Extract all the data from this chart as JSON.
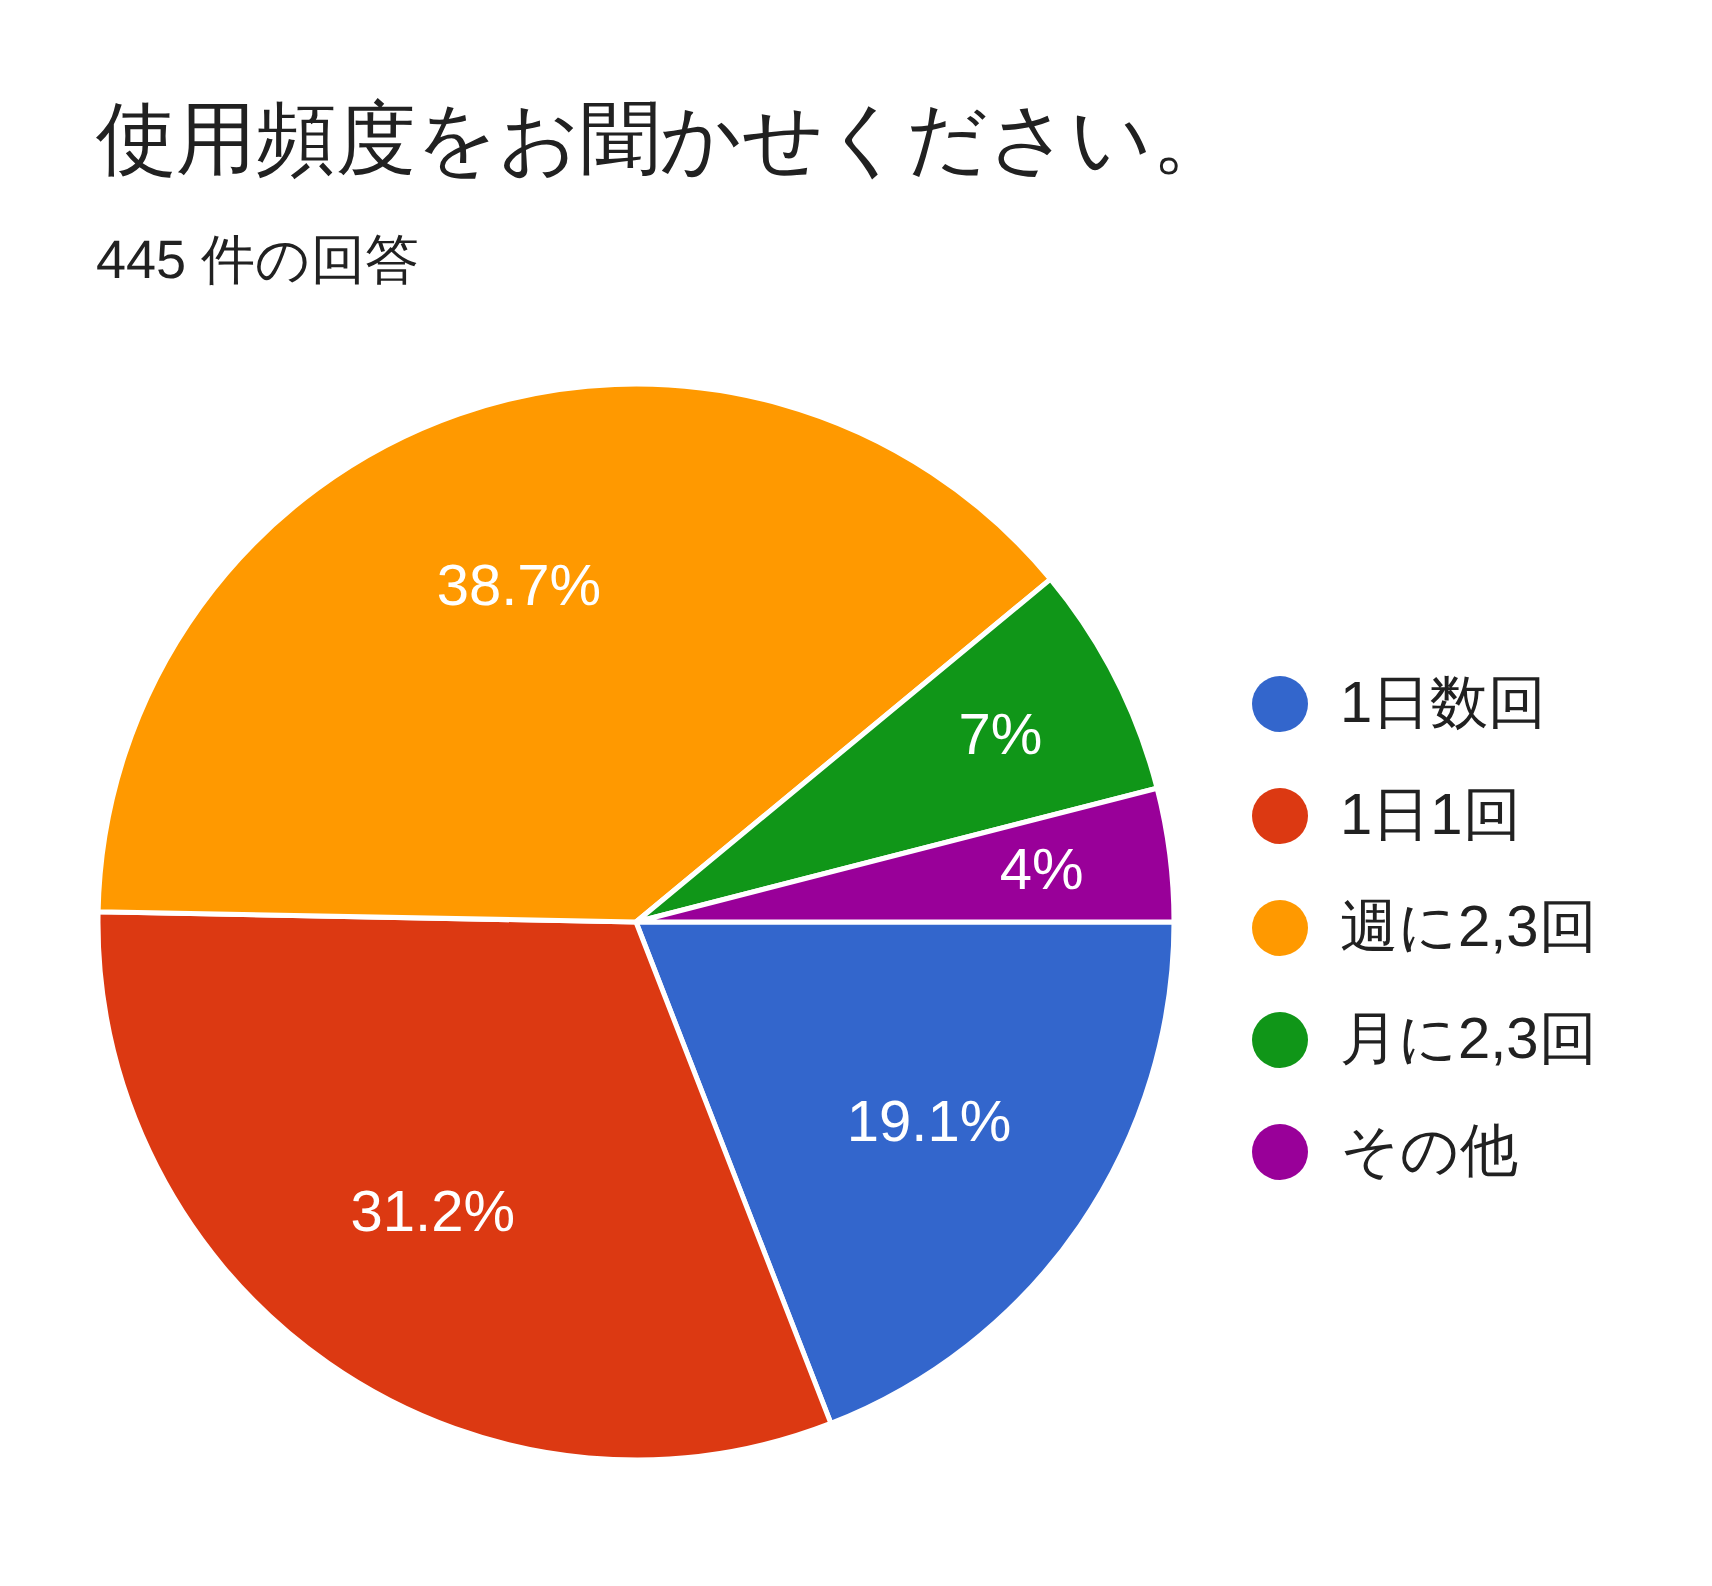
{
  "chart_data": {
    "type": "pie",
    "title": "使用頻度をお聞かせください。",
    "subtitle": "445 件の回答",
    "categories": [
      "1日数回",
      "1日1回",
      "週に2,3回",
      "月に2,3回",
      "その他"
    ],
    "values": [
      19.1,
      31.2,
      38.7,
      7,
      4
    ],
    "colors": [
      "#3366cc",
      "#dc3912",
      "#ff9900",
      "#109618",
      "#990099"
    ],
    "value_labels": [
      "19.1%",
      "31.2%",
      "38.7%",
      "7%",
      "4%"
    ],
    "legend": "right"
  }
}
